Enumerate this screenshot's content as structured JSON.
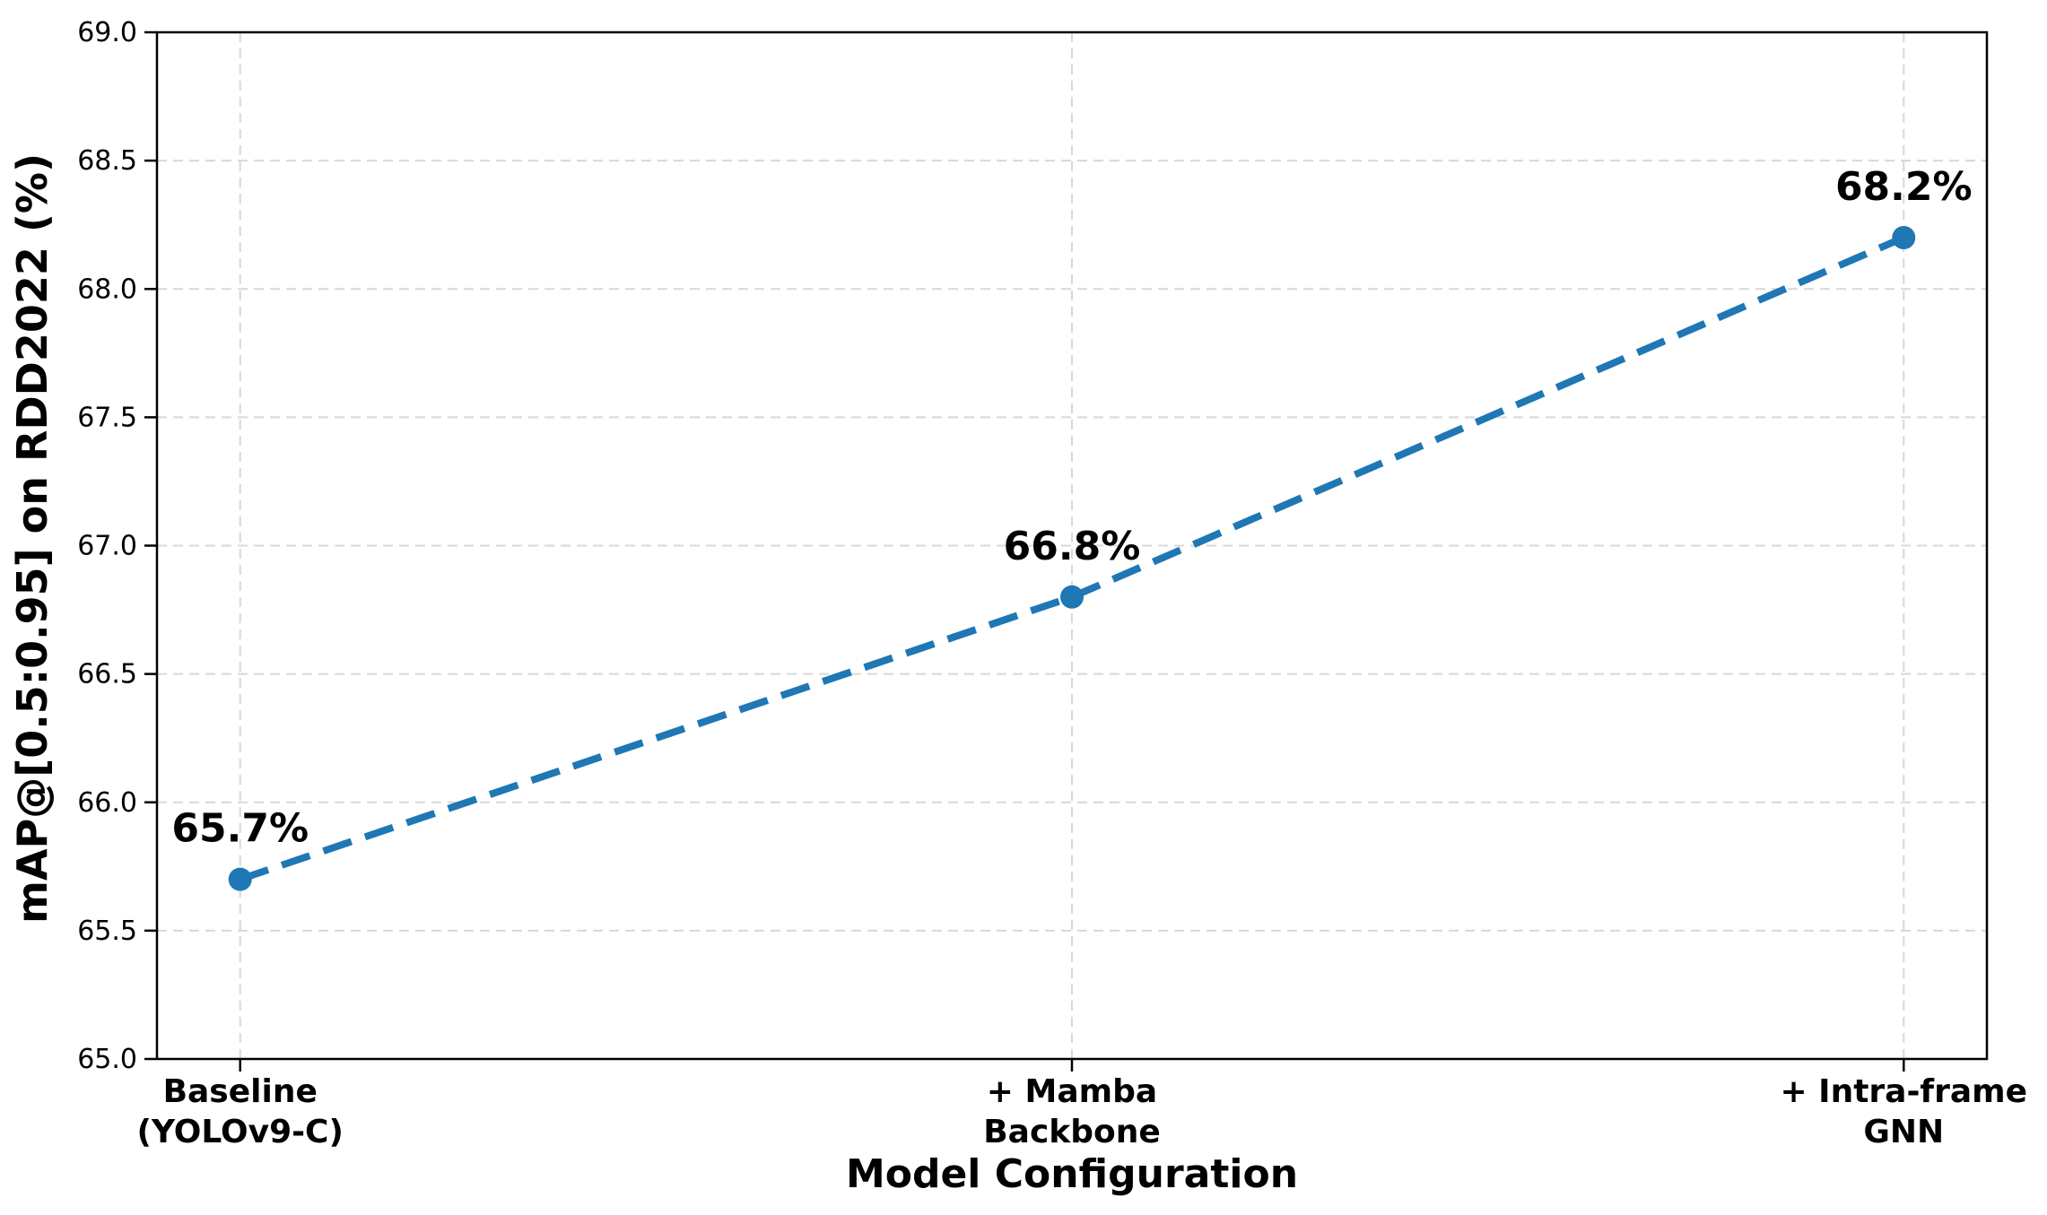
{
  "chart_data": {
    "type": "line",
    "title": "",
    "xlabel": "Model Configuration",
    "ylabel": "mAP@[0.5:0.95] on RDD2022 (%)",
    "categories": [
      [
        "Baseline",
        "(YOLOv9-C)"
      ],
      [
        "+ Mamba",
        "Backbone"
      ],
      [
        "+ Intra-frame",
        "GNN"
      ]
    ],
    "values": [
      65.7,
      66.8,
      68.2
    ],
    "point_labels": [
      "65.7%",
      "66.8%",
      "68.2%"
    ],
    "ylim": [
      65.0,
      69.0
    ],
    "ytick_labels": [
      "65.0",
      "65.5",
      "66.0",
      "66.5",
      "67.0",
      "67.5",
      "68.0",
      "68.5",
      "69.0"
    ],
    "grid": true,
    "line_style": "dashed",
    "marker": "circle",
    "legend": null,
    "colors": {
      "line": "#1f77b4",
      "marker": "#1f77b4",
      "grid": "#d8d8d8",
      "axis": "#000000",
      "text": "#000000",
      "background": "#ffffff"
    }
  }
}
